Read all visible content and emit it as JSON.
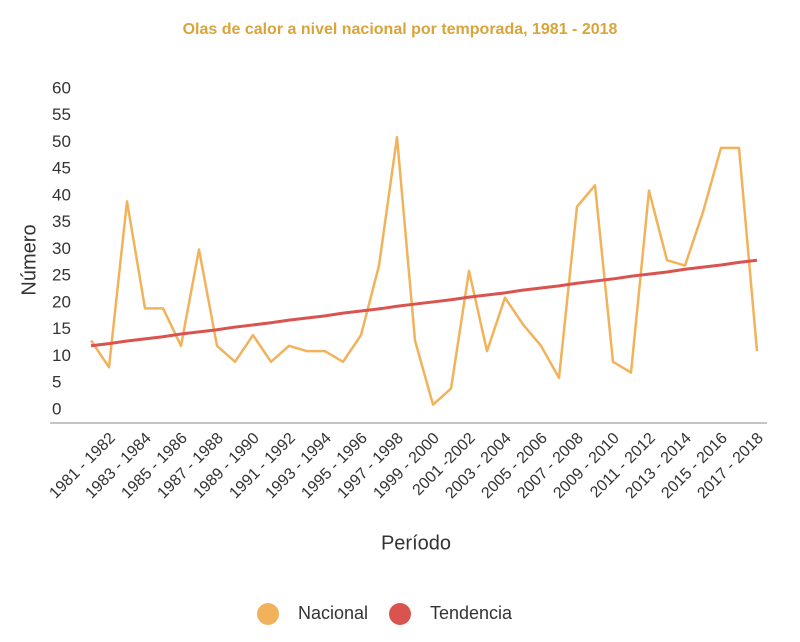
{
  "chart_data": {
    "type": "line",
    "title": "Olas de calor a nivel nacional por temporada, 1981 - 2018",
    "x_label": "Período",
    "y_label": "Número",
    "categories": [
      "1981 - 1982",
      null,
      "1983 - 1984",
      null,
      "1985 - 1986",
      null,
      "1987 - 1988",
      null,
      "1989 - 1990",
      null,
      "1991 - 1992",
      null,
      "1993 - 1994",
      null,
      "1995 - 1996",
      null,
      "1997 - 1998",
      null,
      "1999 - 2000",
      null,
      "2001 -2002",
      null,
      "2003 - 2004",
      null,
      "2005 - 2006",
      null,
      "2007 - 2008",
      null,
      "2009 - 2010",
      null,
      "2011 - 2012",
      null,
      "2013 - 2014",
      null,
      "2015 - 2016",
      null,
      "2017 - 2018",
      null
    ],
    "series": [
      {
        "name": "Nacional",
        "color": "#f2b25c",
        "values": [
          13,
          8,
          39,
          19,
          19,
          12,
          30,
          12,
          9,
          14,
          9,
          12,
          11,
          11,
          9,
          14,
          27,
          51,
          13,
          1,
          4,
          26,
          11,
          21,
          16,
          12,
          6,
          38,
          42,
          9,
          7,
          41,
          28,
          27,
          37,
          49,
          49,
          11
        ]
      },
      {
        "name": "Tendencia",
        "color": "#d9534f",
        "values": [
          12.0,
          12.4,
          12.9,
          13.3,
          13.7,
          14.2,
          14.6,
          15.0,
          15.5,
          15.9,
          16.3,
          16.8,
          17.2,
          17.6,
          18.1,
          18.5,
          18.9,
          19.4,
          19.8,
          20.2,
          20.6,
          21.1,
          21.5,
          21.9,
          22.4,
          22.8,
          23.2,
          23.7,
          24.1,
          24.5,
          25.0,
          25.4,
          25.8,
          26.3,
          26.7,
          27.1,
          27.6,
          28.0
        ]
      }
    ],
    "ylim": [
      0,
      60
    ],
    "yticks": [
      0,
      5,
      10,
      15,
      20,
      25,
      30,
      35,
      40,
      45,
      50,
      55,
      60
    ],
    "grid": false,
    "legend": "bottom"
  }
}
